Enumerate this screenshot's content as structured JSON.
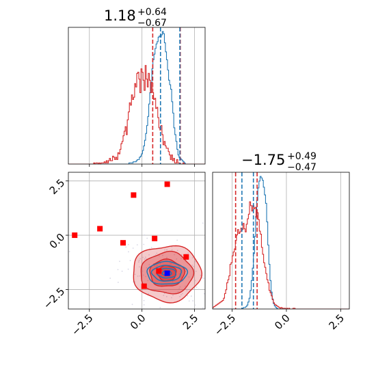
{
  "chart_data": {
    "type": "corner",
    "colors": {
      "series_a": "#1f77b4",
      "series_b": "#d62728",
      "markers": "#ff0000",
      "truth": "#0000ff",
      "grid": "#b0b0b0",
      "scatter": "#c8c8dc"
    },
    "params": [
      {
        "title_value": "1.18",
        "title_plus": "+0.64",
        "title_minus": "−0.67",
        "xlim": [
          -3.5,
          3.0
        ]
      },
      {
        "title_value": "−1.75",
        "title_plus": "+0.49",
        "title_minus": "−0.47",
        "xlim": [
          -3.4,
          2.9
        ]
      }
    ],
    "ticks": {
      "x0": [
        {
          "v": -2.5,
          "label": "−2.5"
        },
        {
          "v": 0.0,
          "label": "0.0"
        },
        {
          "v": 2.5,
          "label": "2.5"
        }
      ],
      "y1": [
        {
          "v": 2.5,
          "label": "2.5"
        },
        {
          "v": 0.0,
          "label": "0.0"
        },
        {
          "v": -2.5,
          "label": "−2.5"
        }
      ],
      "x1": [
        {
          "v": -2.5,
          "label": "−2.5"
        },
        {
          "v": 0.0,
          "label": "0.0"
        },
        {
          "v": 2.5,
          "label": "2.5"
        }
      ]
    },
    "quantiles": {
      "p0_blue": [
        0.88,
        1.8
      ],
      "p0_red": [
        0.51,
        1.82
      ],
      "p1_blue": [
        -2.05,
        -1.52
      ],
      "p1_red": [
        -2.34,
        -1.35
      ]
    },
    "hist_p0": {
      "range": [
        -3.5,
        3.0
      ],
      "blue": [
        0,
        0,
        0,
        0,
        0,
        0,
        0,
        0,
        0,
        0,
        0,
        0,
        0,
        0,
        0,
        0,
        0,
        0,
        0,
        0,
        0,
        0,
        0,
        0,
        0,
        0,
        0,
        0,
        0,
        0,
        0,
        0,
        0,
        0,
        0,
        0,
        0,
        0,
        0,
        0,
        0,
        0,
        0,
        0,
        0,
        0,
        0,
        0,
        0,
        0,
        0,
        0,
        0,
        0,
        0,
        0,
        0,
        0,
        1,
        1,
        1,
        1,
        2,
        2,
        2,
        3,
        4,
        4,
        6,
        7,
        9,
        12,
        16,
        21,
        27,
        34,
        42,
        53,
        63,
        72,
        84,
        92,
        97,
        102,
        106,
        108,
        112,
        113,
        112,
        114,
        117,
        115,
        107,
        99,
        92,
        83,
        74,
        70,
        66,
        55,
        45,
        32,
        26,
        20,
        13,
        8,
        6,
        5,
        4,
        3,
        2,
        1,
        0,
        0,
        0,
        0,
        0,
        0,
        0,
        0,
        0,
        0,
        0,
        0,
        0,
        0,
        0,
        0,
        0,
        0,
        0
      ],
      "red": [
        0,
        0,
        0,
        0,
        0,
        0,
        0,
        0,
        0,
        0,
        0,
        0,
        0,
        0,
        0,
        0,
        0,
        0,
        0,
        0,
        0,
        0,
        0,
        0,
        1,
        0,
        1,
        1,
        0,
        1,
        0,
        1,
        1,
        1,
        2,
        1,
        3,
        1,
        3,
        5,
        3,
        3,
        7,
        6,
        4,
        6,
        4,
        10,
        9,
        13,
        18,
        20,
        25,
        29,
        33,
        26,
        39,
        46,
        54,
        52,
        61,
        57,
        59,
        71,
        68,
        80,
        81,
        75,
        63,
        84,
        81,
        74,
        65,
        87,
        75,
        68,
        80,
        74,
        63,
        72,
        63,
        57,
        58,
        49,
        50,
        41,
        32,
        30,
        34,
        26,
        17,
        20,
        16,
        14,
        14,
        11,
        8,
        4,
        8,
        3,
        5,
        1,
        1,
        4,
        1,
        1,
        0,
        0,
        0,
        1,
        0,
        0,
        0,
        0,
        0,
        0,
        0,
        0,
        0,
        0,
        0,
        0,
        0,
        0,
        0,
        0,
        0,
        0,
        0,
        0
      ]
    },
    "hist_p1": {
      "range": [
        -3.4,
        2.9
      ],
      "blue": [
        0,
        0,
        0,
        0,
        0,
        0,
        0,
        0,
        0,
        0,
        0,
        0,
        0,
        0,
        0,
        0,
        0,
        0,
        0,
        0,
        0,
        0,
        0,
        0,
        0,
        0,
        0,
        1,
        2,
        2,
        3,
        5,
        9,
        14,
        24,
        37,
        53,
        72,
        94,
        120,
        141,
        157,
        166,
        172,
        170,
        167,
        158,
        148,
        137,
        113,
        83,
        58,
        37,
        22,
        13,
        7,
        4,
        2,
        1,
        0,
        0,
        0,
        0,
        0,
        0,
        0,
        0,
        0,
        0,
        0,
        0,
        0,
        0,
        0,
        0,
        0,
        0,
        0,
        0,
        0,
        0,
        0,
        0,
        0,
        0,
        0,
        0,
        0,
        0,
        0,
        0,
        0,
        0,
        0,
        0,
        0,
        0,
        0,
        0,
        0,
        0,
        0,
        0,
        0,
        0,
        0,
        0,
        0,
        0,
        0,
        0,
        0,
        0,
        0,
        0,
        0,
        0,
        0,
        0,
        0,
        0,
        0,
        0,
        0
      ],
      "red": [
        2,
        3,
        4,
        5,
        6,
        7,
        8,
        9,
        10,
        11,
        14,
        20,
        25,
        34,
        38,
        43,
        58,
        60,
        69,
        74,
        78,
        89,
        96,
        103,
        98,
        100,
        105,
        103,
        111,
        104,
        100,
        110,
        117,
        123,
        139,
        134,
        127,
        134,
        130,
        132,
        119,
        125,
        116,
        101,
        97,
        80,
        71,
        60,
        54,
        46,
        38,
        34,
        24,
        21,
        17,
        12,
        8,
        6,
        5,
        4,
        3,
        2,
        1,
        2,
        1,
        1,
        1,
        0,
        1,
        0,
        1,
        0,
        0,
        0,
        1,
        1,
        0,
        0,
        0,
        0,
        0,
        0,
        0,
        0,
        0,
        0,
        0,
        0,
        0,
        0,
        0,
        0,
        0,
        0,
        0,
        0,
        0,
        0,
        0,
        0,
        0,
        0,
        0,
        0,
        0,
        0,
        0,
        0,
        0,
        0,
        0,
        0,
        0,
        0,
        0,
        0,
        0,
        0,
        0,
        0,
        0,
        0,
        0,
        0,
        0,
        0
      ]
    },
    "joint": {
      "markers": [
        {
          "x": -3.2,
          "y": -0.0
        },
        {
          "x": -2.0,
          "y": 0.3
        },
        {
          "x": -0.9,
          "y": -0.35
        },
        {
          "x": -0.4,
          "y": 1.85
        },
        {
          "x": 0.6,
          "y": -0.15
        },
        {
          "x": 1.2,
          "y": 2.35
        },
        {
          "x": 2.1,
          "y": -1.0
        },
        {
          "x": 0.8,
          "y": -1.65
        },
        {
          "x": 0.1,
          "y": -2.35
        }
      ],
      "truth": {
        "x": 1.2,
        "y": -1.75
      },
      "contours_red": [
        {
          "cx": 1.18,
          "cy": -1.75,
          "rx": 1.62,
          "ry": 1.28,
          "fill_opacity": 0.35
        },
        {
          "cx": 1.18,
          "cy": -1.75,
          "rx": 1.25,
          "ry": 0.95,
          "fill_opacity": 0.45
        },
        {
          "cx": 1.18,
          "cy": -1.75,
          "rx": 0.82,
          "ry": 0.62,
          "fill_opacity": 0.55
        },
        {
          "cx": 1.18,
          "cy": -1.75,
          "rx": 0.45,
          "ry": 0.35,
          "fill_opacity": 0.7
        }
      ],
      "contours_blue": [
        {
          "cx": 1.18,
          "cy": -1.75,
          "rx": 0.95,
          "ry": 0.52
        },
        {
          "cx": 1.18,
          "cy": -1.75,
          "rx": 0.7,
          "ry": 0.36
        },
        {
          "cx": 1.18,
          "cy": -1.75,
          "rx": 0.45,
          "ry": 0.22
        },
        {
          "cx": 1.18,
          "cy": -1.75,
          "rx": 0.22,
          "ry": 0.11
        }
      ]
    }
  }
}
